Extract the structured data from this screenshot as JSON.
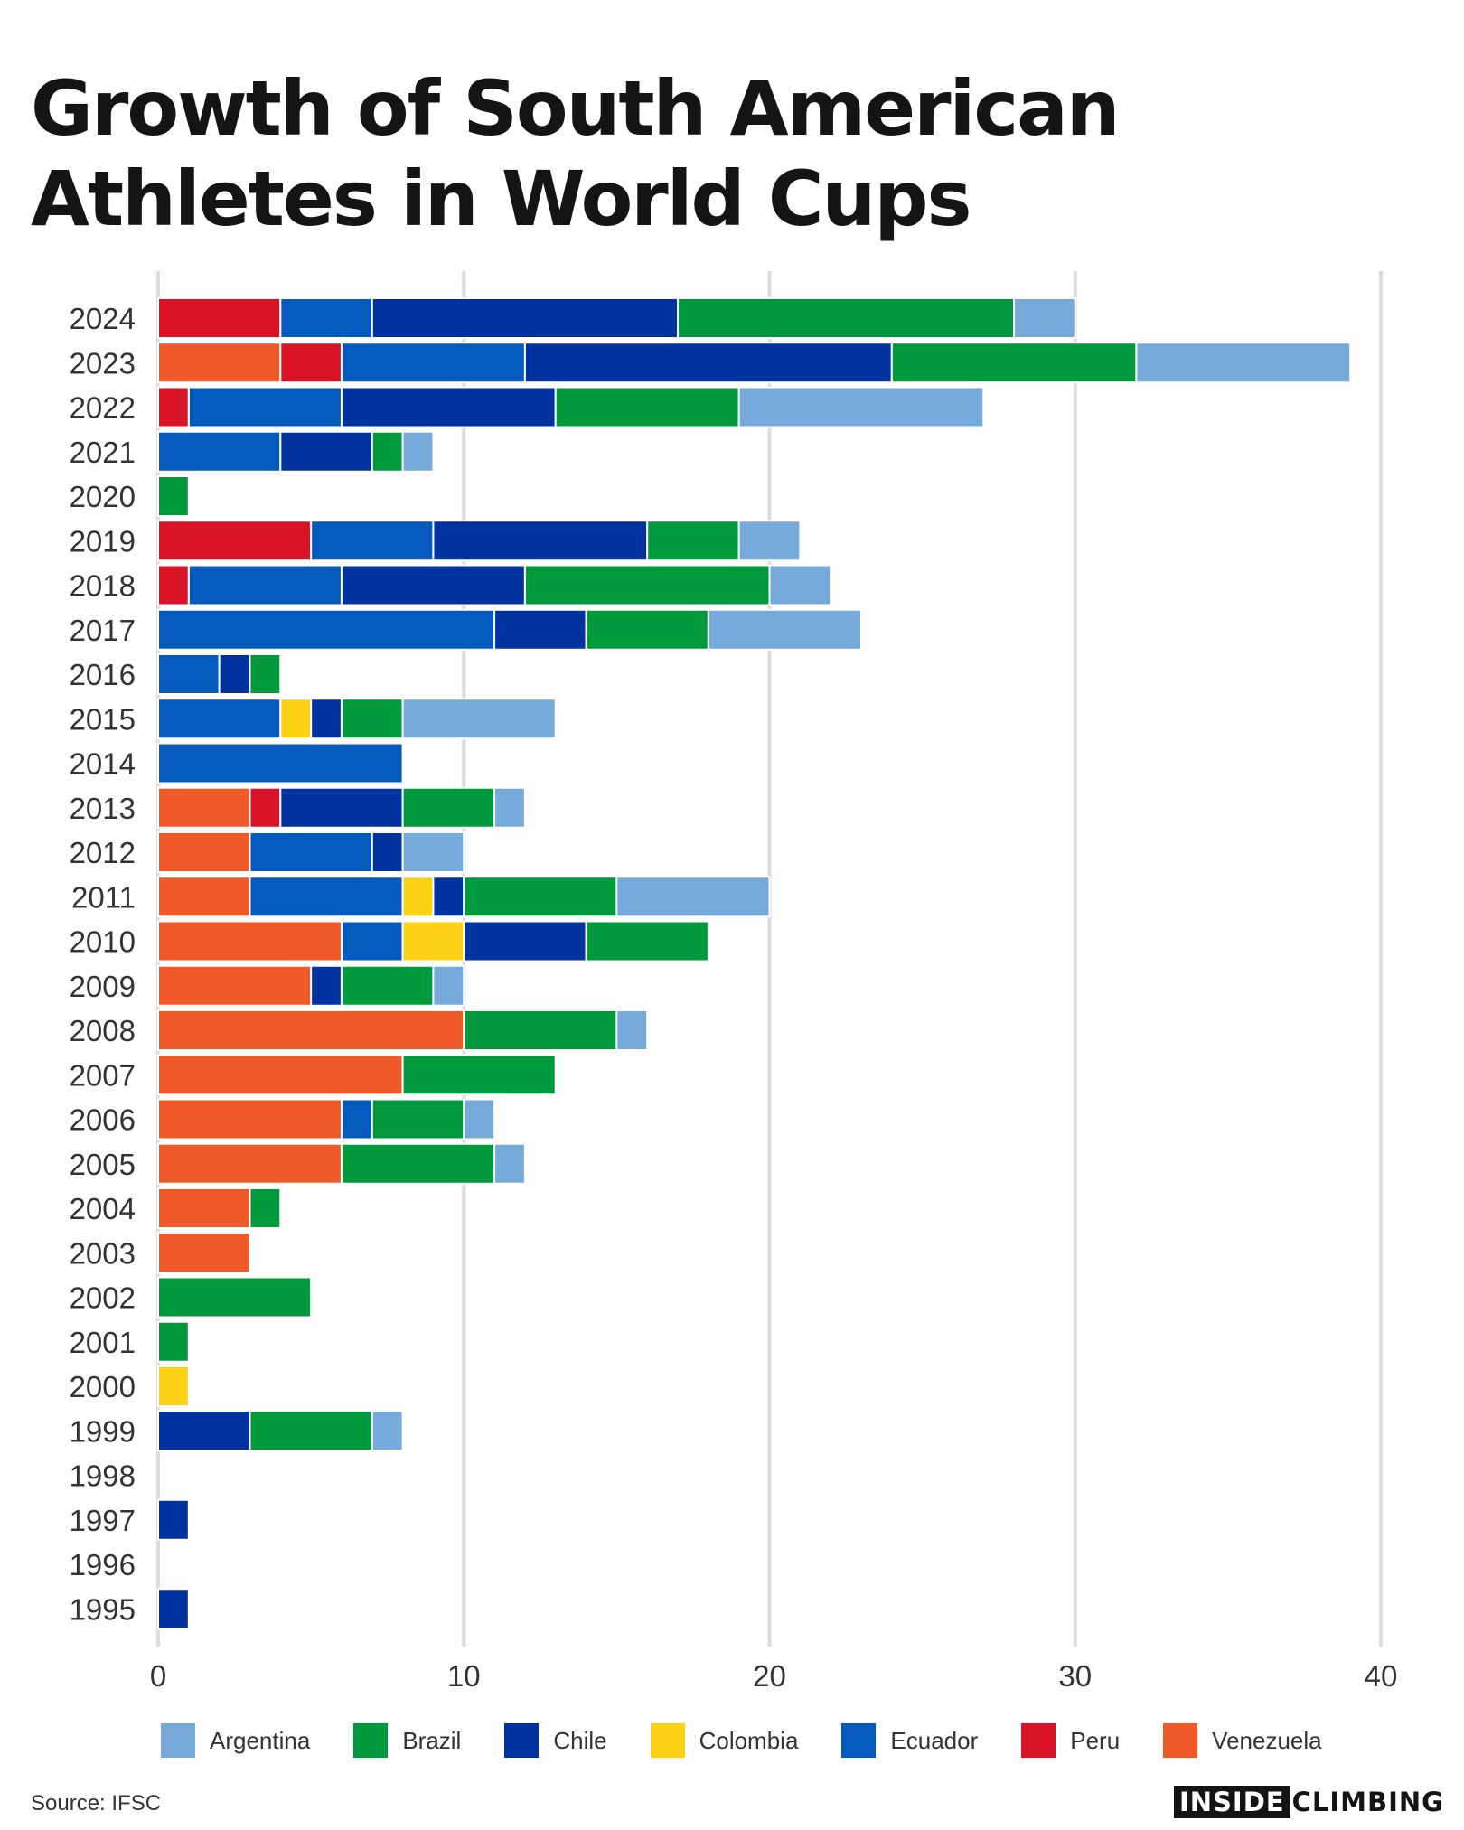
{
  "chart_data": {
    "type": "bar",
    "orientation": "horizontal",
    "stacked": true,
    "title_lines": [
      "Growth of South American",
      "Athletes in World Cups"
    ],
    "categories": [
      "2024",
      "2023",
      "2022",
      "2021",
      "2020",
      "2019",
      "2018",
      "2017",
      "2016",
      "2015",
      "2014",
      "2013",
      "2012",
      "2011",
      "2010",
      "2009",
      "2008",
      "2007",
      "2006",
      "2005",
      "2004",
      "2003",
      "2002",
      "2001",
      "2000",
      "1999",
      "1998",
      "1997",
      "1996",
      "1995"
    ],
    "stack_order": [
      "Venezuela",
      "Peru",
      "Ecuador",
      "Colombia",
      "Chile",
      "Brazil",
      "Argentina"
    ],
    "series": [
      {
        "name": "Venezuela",
        "color": "#f05a28",
        "values": [
          0,
          4,
          0,
          0,
          0,
          0,
          0,
          0,
          0,
          0,
          0,
          3,
          3,
          3,
          6,
          5,
          10,
          8,
          6,
          6,
          3,
          3,
          0,
          0,
          0,
          0,
          0,
          0,
          0,
          0
        ]
      },
      {
        "name": "Peru",
        "color": "#d91427",
        "values": [
          4,
          2,
          1,
          0,
          0,
          5,
          1,
          0,
          0,
          0,
          0,
          1,
          0,
          0,
          0,
          0,
          0,
          0,
          0,
          0,
          0,
          0,
          0,
          0,
          0,
          0,
          0,
          0,
          0,
          0
        ]
      },
      {
        "name": "Ecuador",
        "color": "#045bbd",
        "values": [
          3,
          6,
          5,
          4,
          0,
          4,
          5,
          11,
          2,
          4,
          8,
          0,
          4,
          5,
          2,
          0,
          0,
          0,
          1,
          0,
          0,
          0,
          0,
          0,
          0,
          0,
          0,
          0,
          0,
          0
        ]
      },
      {
        "name": "Colombia",
        "color": "#fcd116",
        "values": [
          0,
          0,
          0,
          0,
          0,
          0,
          0,
          0,
          0,
          1,
          0,
          0,
          0,
          1,
          2,
          0,
          0,
          0,
          0,
          0,
          0,
          0,
          0,
          0,
          1,
          0,
          0,
          0,
          0,
          0
        ]
      },
      {
        "name": "Chile",
        "color": "#0032a0",
        "values": [
          10,
          12,
          7,
          3,
          0,
          7,
          6,
          3,
          1,
          1,
          0,
          4,
          1,
          1,
          4,
          1,
          0,
          0,
          0,
          0,
          0,
          0,
          0,
          0,
          0,
          3,
          0,
          1,
          0,
          1
        ]
      },
      {
        "name": "Brazil",
        "color": "#009a3d",
        "values": [
          11,
          8,
          6,
          1,
          1,
          3,
          8,
          4,
          1,
          2,
          0,
          3,
          0,
          5,
          4,
          3,
          5,
          5,
          3,
          5,
          1,
          0,
          5,
          1,
          0,
          4,
          0,
          0,
          0,
          0
        ]
      },
      {
        "name": "Argentina",
        "color": "#75aadb",
        "values": [
          2,
          7,
          8,
          1,
          0,
          2,
          2,
          5,
          0,
          5,
          0,
          1,
          2,
          5,
          0,
          1,
          1,
          0,
          1,
          1,
          0,
          0,
          0,
          0,
          0,
          1,
          0,
          0,
          0,
          0
        ]
      }
    ],
    "legend_order": [
      "Argentina",
      "Brazil",
      "Chile",
      "Colombia",
      "Ecuador",
      "Peru",
      "Venezuela"
    ],
    "xticks": [
      0,
      10,
      20,
      30,
      40
    ],
    "xlim": [
      0,
      40
    ],
    "grid": "vertical",
    "legend_position": "bottom",
    "source": "Source: IFSC"
  },
  "brand": {
    "box": "INSIDE",
    "text": "CLIMBING"
  }
}
